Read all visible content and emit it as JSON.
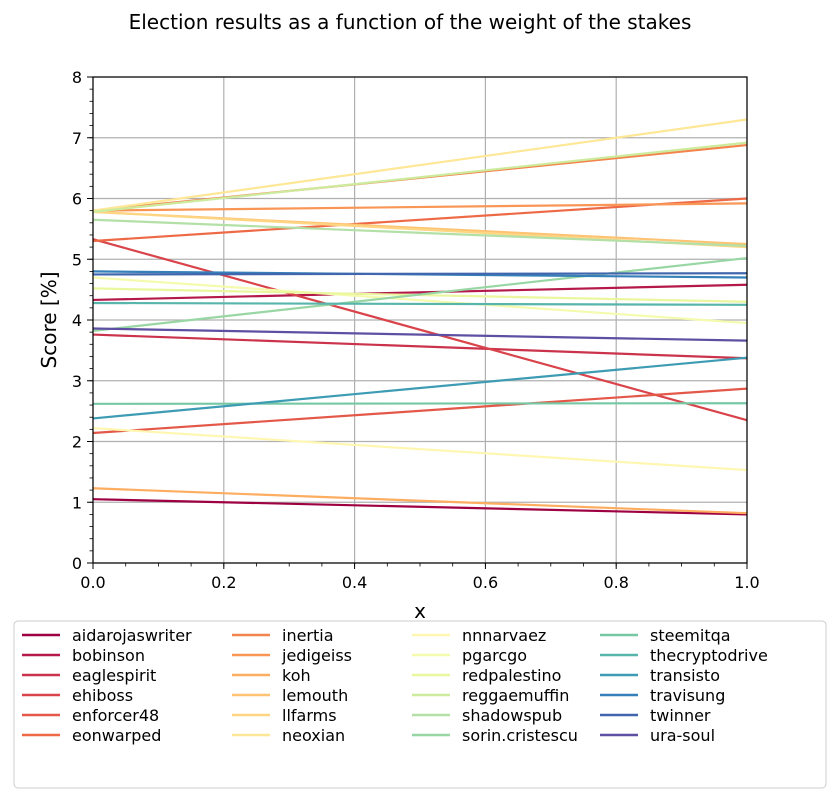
{
  "chart_data": {
    "type": "line",
    "title": "Election results as a function of the weight of the stakes",
    "xlabel": "x",
    "ylabel": "Score [%]",
    "xlim": [
      0,
      1
    ],
    "ylim": [
      0,
      8
    ],
    "xticks": [
      "0.0",
      "0.2",
      "0.4",
      "0.6",
      "0.8",
      "1.0"
    ],
    "yticks": [
      "0",
      "1",
      "2",
      "3",
      "4",
      "5",
      "6",
      "7",
      "8"
    ],
    "grid": true,
    "legend_position": "bottom",
    "x": [
      0,
      1
    ],
    "series": [
      {
        "name": "aidarojaswriter",
        "color": "#9e0142",
        "values": [
          1.05,
          0.8
        ]
      },
      {
        "name": "bobinson",
        "color": "#b4194a",
        "values": [
          4.33,
          4.58
        ]
      },
      {
        "name": "eaglespirit",
        "color": "#cb334c",
        "values": [
          3.76,
          3.37
        ]
      },
      {
        "name": "ehiboss",
        "color": "#d9444b",
        "values": [
          5.33,
          2.35
        ]
      },
      {
        "name": "enforcer48",
        "color": "#e35849",
        "values": [
          2.14,
          2.87
        ]
      },
      {
        "name": "eonwarped",
        "color": "#ee6a46",
        "values": [
          5.3,
          6.0
        ]
      },
      {
        "name": "inertia",
        "color": "#f4844d",
        "values": [
          5.8,
          6.88
        ]
      },
      {
        "name": "jedigeiss",
        "color": "#f99656",
        "values": [
          5.8,
          5.92
        ]
      },
      {
        "name": "koh",
        "color": "#fdad60",
        "values": [
          1.23,
          0.82
        ]
      },
      {
        "name": "lemouth",
        "color": "#fdc372",
        "values": [
          5.78,
          5.25
        ]
      },
      {
        "name": "llfarms",
        "color": "#fed683",
        "values": [
          5.78,
          5.2
        ]
      },
      {
        "name": "neoxian",
        "color": "#fee797",
        "values": [
          5.8,
          7.3
        ]
      },
      {
        "name": "nnnarvaez",
        "color": "#fff7b1",
        "values": [
          2.22,
          1.53
        ]
      },
      {
        "name": "pgarcgo",
        "color": "#f5fbae",
        "values": [
          4.7,
          3.95
        ]
      },
      {
        "name": "redpalestino",
        "color": "#eaf79e",
        "values": [
          4.52,
          4.3
        ]
      },
      {
        "name": "reggaemuffin",
        "color": "#cdeb9d",
        "values": [
          5.78,
          6.92
        ]
      },
      {
        "name": "shadowspub",
        "color": "#b3e0a6",
        "values": [
          5.65,
          5.22
        ]
      },
      {
        "name": "sorin.cristescu",
        "color": "#98d6a4",
        "values": [
          3.82,
          5.02
        ]
      },
      {
        "name": "steemitqa",
        "color": "#76c8a5",
        "values": [
          2.62,
          2.63
        ]
      },
      {
        "name": "thecryptodrive",
        "color": "#57b5ab",
        "values": [
          4.28,
          4.25
        ]
      },
      {
        "name": "transisto",
        "color": "#3d9cb3",
        "values": [
          2.38,
          3.38
        ]
      },
      {
        "name": "travisung",
        "color": "#3580b9",
        "values": [
          4.8,
          4.7
        ]
      },
      {
        "name": "twinner",
        "color": "#4166ad",
        "values": [
          4.75,
          4.77
        ]
      },
      {
        "name": "ura-soul",
        "color": "#5e4fa2",
        "values": [
          3.86,
          3.66
        ]
      }
    ]
  }
}
